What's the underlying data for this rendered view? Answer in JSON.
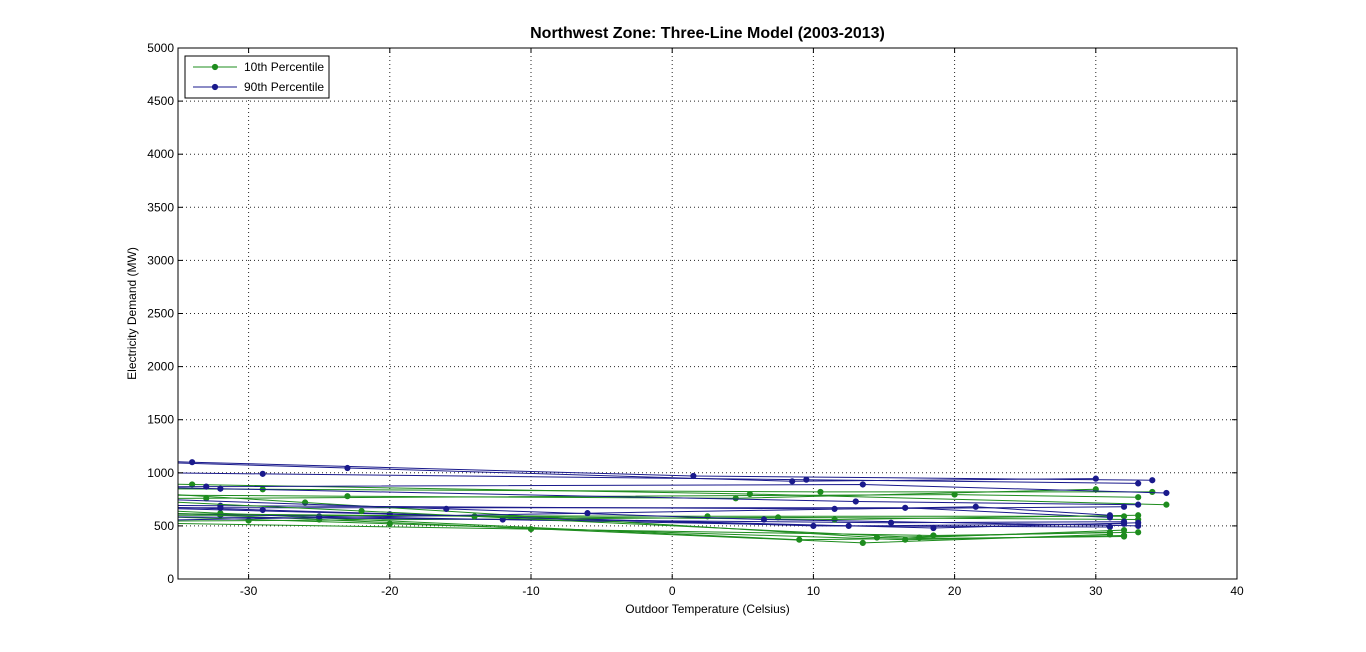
{
  "chart_data": {
    "type": "line",
    "title": "Northwest Zone: Three-Line Model (2003-2013)",
    "xlabel": "Outdoor Temperature (Celsius)",
    "ylabel": "Electricity Demand (MW)",
    "xlim": [
      -35,
      40
    ],
    "ylim": [
      0,
      5000
    ],
    "xticks": [
      -30,
      -20,
      -10,
      0,
      10,
      20,
      30,
      40
    ],
    "yticks": [
      0,
      500,
      1000,
      1500,
      2000,
      2500,
      3000,
      3500,
      4000,
      4500,
      5000
    ],
    "grid": true,
    "legend_position": "top-left",
    "colors": {
      "10th Percentile": "#1e8c1e",
      "90th Percentile": "#1a1a8c"
    },
    "series": [
      {
        "name": "10th Percentile",
        "x": [
          -34,
          5.5,
          35
        ],
        "y": [
          890,
          800,
          700
        ]
      },
      {
        "name": "90th Percentile",
        "x": [
          -34,
          1.5,
          34
        ],
        "y": [
          1100,
          970,
          930
        ]
      },
      {
        "name": "",
        "color_key": "10th Percentile",
        "x": [
          -29,
          10.5,
          34
        ],
        "y": [
          845,
          820,
          820
        ]
      },
      {
        "name": "",
        "color_key": "90th Percentile",
        "x": [
          -29,
          9.5,
          33
        ],
        "y": [
          990,
          935,
          900
        ]
      },
      {
        "name": "",
        "color_key": "10th Percentile",
        "x": [
          -33,
          20,
          33
        ],
        "y": [
          760,
          795,
          770
        ]
      },
      {
        "name": "",
        "color_key": "90th Percentile",
        "x": [
          -23,
          8.5,
          30
        ],
        "y": [
          1045,
          920,
          945
        ]
      },
      {
        "name": "",
        "color_key": "10th Percentile",
        "x": [
          -23,
          4.5,
          30
        ],
        "y": [
          780,
          760,
          845
        ]
      },
      {
        "name": "",
        "color_key": "90th Percentile",
        "x": [
          -33,
          13.5,
          35
        ],
        "y": [
          870,
          890,
          810
        ]
      },
      {
        "name": "",
        "color_key": "10th Percentile",
        "x": [
          -32,
          2.5,
          32
        ],
        "y": [
          600,
          590,
          590
        ]
      },
      {
        "name": "",
        "color_key": "90th Percentile",
        "x": [
          -32,
          13,
          33
        ],
        "y": [
          850,
          730,
          700
        ]
      },
      {
        "name": "",
        "color_key": "10th Percentile",
        "x": [
          -30,
          7.5,
          33
        ],
        "y": [
          550,
          580,
          560
        ]
      },
      {
        "name": "",
        "color_key": "90th Percentile",
        "x": [
          -32,
          11.5,
          32
        ],
        "y": [
          690,
          660,
          680
        ]
      },
      {
        "name": "",
        "color_key": "10th Percentile",
        "x": [
          -32,
          9,
          32
        ],
        "y": [
          620,
          370,
          400
        ]
      },
      {
        "name": "",
        "color_key": "90th Percentile",
        "x": [
          -32,
          16.5,
          31
        ],
        "y": [
          670,
          670,
          580
        ]
      },
      {
        "name": "",
        "color_key": "10th Percentile",
        "x": [
          -25,
          13.5,
          31
        ],
        "y": [
          560,
          340,
          420
        ]
      },
      {
        "name": "",
        "color_key": "90th Percentile",
        "x": [
          -29,
          10,
          31
        ],
        "y": [
          650,
          500,
          490
        ]
      },
      {
        "name": "",
        "color_key": "10th Percentile",
        "x": [
          -20,
          16.5,
          32
        ],
        "y": [
          520,
          370,
          410
        ]
      },
      {
        "name": "",
        "color_key": "90th Percentile",
        "x": [
          -25,
          12.5,
          32
        ],
        "y": [
          590,
          500,
          520
        ]
      },
      {
        "name": "",
        "color_key": "10th Percentile",
        "x": [
          -10,
          18.5,
          33
        ],
        "y": [
          470,
          410,
          440
        ]
      },
      {
        "name": "",
        "color_key": "90th Percentile",
        "x": [
          -20,
          18.5,
          33
        ],
        "y": [
          610,
          480,
          530
        ]
      },
      {
        "name": "",
        "color_key": "10th Percentile",
        "x": [
          -26,
          14.5,
          31
        ],
        "y": [
          720,
          390,
          440
        ]
      },
      {
        "name": "",
        "color_key": "90th Percentile",
        "x": [
          -12,
          15.5,
          32
        ],
        "y": [
          560,
          530,
          540
        ]
      },
      {
        "name": "",
        "color_key": "10th Percentile",
        "x": [
          -14,
          11.5,
          33
        ],
        "y": [
          590,
          560,
          600
        ]
      },
      {
        "name": "",
        "color_key": "90th Percentile",
        "x": [
          -16,
          6.5,
          33
        ],
        "y": [
          660,
          560,
          500
        ]
      },
      {
        "name": "",
        "color_key": "10th Percentile",
        "x": [
          -22,
          17.5,
          32
        ],
        "y": [
          640,
          390,
          460
        ]
      },
      {
        "name": "",
        "color_key": "90th Percentile",
        "x": [
          -6,
          21.5,
          31
        ],
        "y": [
          620,
          680,
          600
        ]
      }
    ]
  }
}
